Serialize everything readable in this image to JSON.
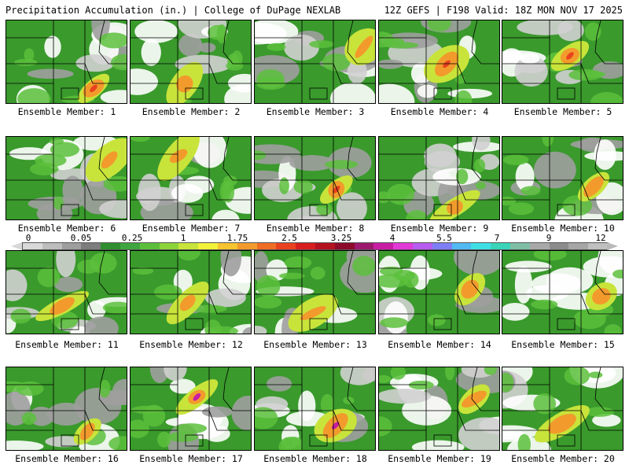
{
  "header": {
    "title": "Precipitation Accumulation (in.) | College of DuPage NEXLAB",
    "run_info": "12Z GEFS | F198 Valid: 18Z MON NOV 17 2025"
  },
  "colorbar": {
    "ticks": [
      "0",
      "0.05",
      "0.25",
      "1",
      "1.75",
      "2.5",
      "3.25",
      "4",
      "5.5",
      "7",
      "9",
      "12"
    ],
    "colors": [
      "#d9d9d9",
      "#bdbdbd",
      "#9e9e9e",
      "#7d7d7d",
      "#2f8f2f",
      "#3fa53f",
      "#5cbf3c",
      "#8dd33a",
      "#c8e43a",
      "#f3f23a",
      "#f6c431",
      "#f29b2c",
      "#ef6d25",
      "#e8421f",
      "#d81e1e",
      "#b3121e",
      "#8d0a2a",
      "#9c1a6e",
      "#c81ea4",
      "#e23ad6",
      "#b85cf0",
      "#7f7ff5",
      "#53b9f2",
      "#3fe0e5",
      "#39d4b8",
      "#7fbfa5",
      "#a9a9a9",
      "#8c8c8c",
      "#a6a6a6",
      "#c0c0c0"
    ]
  },
  "members": [
    {
      "label": "Ensemble Member: 1"
    },
    {
      "label": "Ensemble Member: 2"
    },
    {
      "label": "Ensemble Member: 3"
    },
    {
      "label": "Ensemble Member: 4"
    },
    {
      "label": "Ensemble Member: 5"
    },
    {
      "label": "Ensemble Member: 6"
    },
    {
      "label": "Ensemble Member: 7"
    },
    {
      "label": "Ensemble Member: 8"
    },
    {
      "label": "Ensemble Member: 9"
    },
    {
      "label": "Ensemble Member: 10"
    },
    {
      "label": "Ensemble Member: 11"
    },
    {
      "label": "Ensemble Member: 12"
    },
    {
      "label": "Ensemble Member: 13"
    },
    {
      "label": "Ensemble Member: 14"
    },
    {
      "label": "Ensemble Member: 15"
    },
    {
      "label": "Ensemble Member: 16"
    },
    {
      "label": "Ensemble Member: 17"
    },
    {
      "label": "Ensemble Member: 18"
    },
    {
      "label": "Ensemble Member: 19"
    },
    {
      "label": "Ensemble Member: 20"
    }
  ]
}
